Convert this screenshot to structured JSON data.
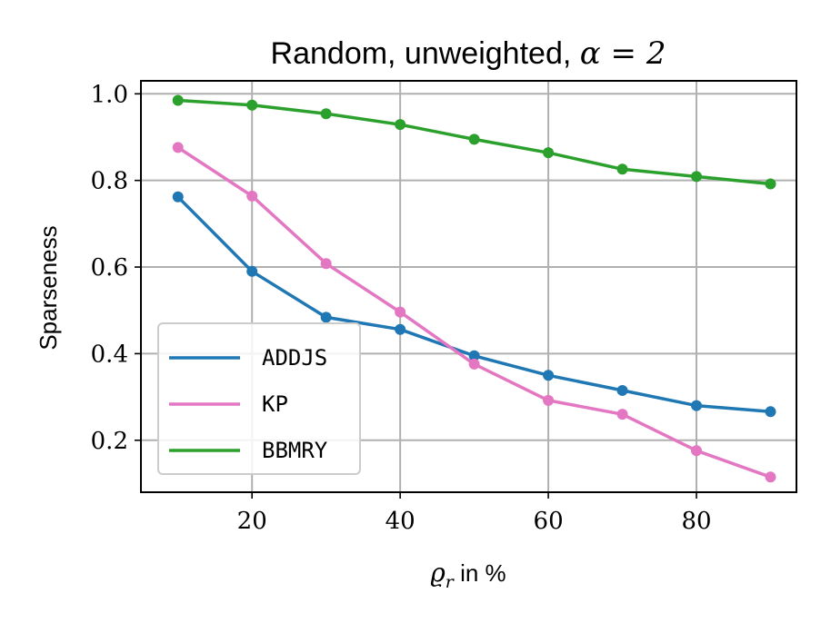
{
  "chart_data": {
    "type": "line",
    "title": {
      "text": "Random, unweighted, ",
      "math": "α = 2"
    },
    "xlabel": {
      "math": "ϱ",
      "subscript": "r",
      "text": " in %"
    },
    "ylabel": "Sparseness",
    "xlim": [
      5,
      93.5
    ],
    "ylim": [
      0.08,
      1.03
    ],
    "xticks": [
      20,
      40,
      60,
      80
    ],
    "xtick_labels": [
      "20",
      "40",
      "60",
      "80"
    ],
    "yticks": [
      0.2,
      0.4,
      0.6,
      0.8,
      1.0
    ],
    "ytick_labels": [
      "0.2",
      "0.4",
      "0.6",
      "0.8",
      "1.0"
    ],
    "grid": true,
    "legend_position": "lower-left",
    "x": [
      10,
      20,
      30,
      40,
      50,
      60,
      70,
      80,
      90
    ],
    "series": [
      {
        "name": "ADDJS",
        "color": "#1f77b4",
        "values": [
          0.762,
          0.59,
          0.484,
          0.456,
          0.395,
          0.35,
          0.315,
          0.28,
          0.266
        ]
      },
      {
        "name": "KP",
        "color": "#e377c2",
        "values": [
          0.876,
          0.764,
          0.608,
          0.496,
          0.376,
          0.292,
          0.26,
          0.176,
          0.115
        ]
      },
      {
        "name": "BBMRY",
        "color": "#2ca02c",
        "values": [
          0.985,
          0.974,
          0.954,
          0.929,
          0.895,
          0.864,
          0.826,
          0.809,
          0.792
        ]
      }
    ]
  }
}
